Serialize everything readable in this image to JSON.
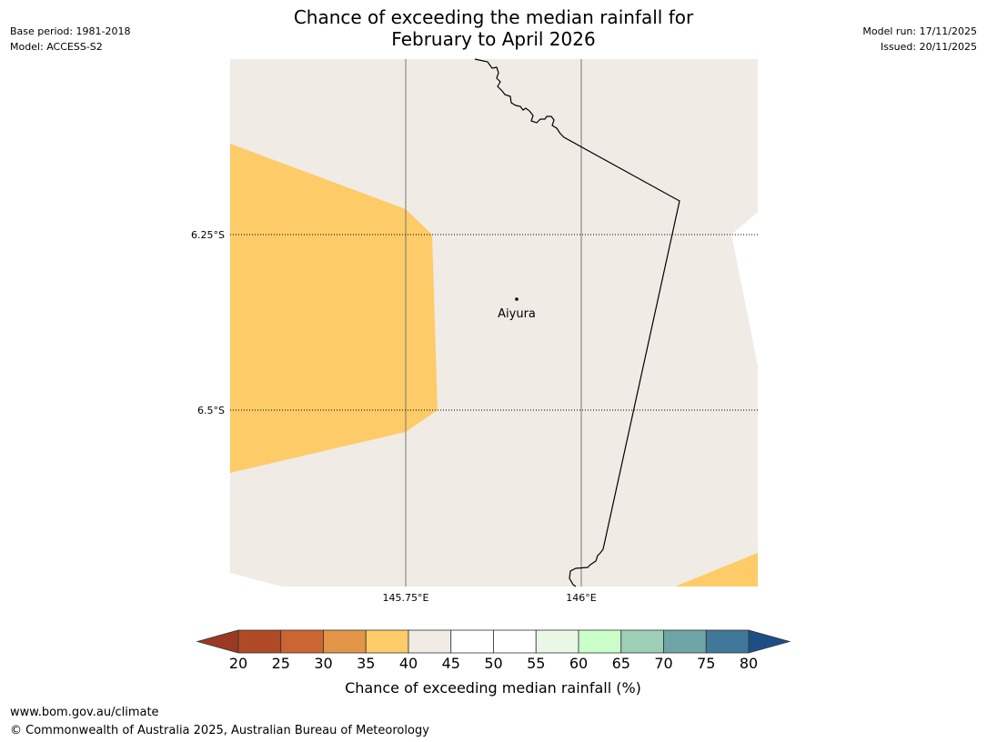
{
  "header": {
    "title_line1": "Chance of exceeding the median rainfall for",
    "title_line2": "February to April 2026",
    "base_period": "Base period: 1981-2018",
    "model": "Model: ACCESS-S2",
    "model_run": "Model run: 17/11/2025",
    "issued": "Issued: 20/11/2025"
  },
  "map": {
    "place_label": "Aiyura",
    "lat_labels": [
      "6.25°S",
      "6.5°S"
    ],
    "lon_labels": [
      "145.75°E",
      "146°E"
    ]
  },
  "colorbar": {
    "title": "Chance of exceeding median rainfall (%)",
    "ticks": [
      "20",
      "25",
      "30",
      "35",
      "40",
      "45",
      "50",
      "55",
      "60",
      "65",
      "70",
      "75",
      "80"
    ],
    "under_color": "#9b3a22",
    "over_color": "#1d4f86",
    "bin_colors": [
      "#b04a26",
      "#cb6632",
      "#e39548",
      "#fdcc68",
      "#f0ebe5",
      "#ffffff",
      "#ffffff",
      "#eaf6e6",
      "#caffca",
      "#9ccfb6",
      "#6ea5a7",
      "#3f7898"
    ]
  },
  "chart_data": {
    "type": "heatmap",
    "title": "Chance of exceeding the median rainfall for February to April 2026",
    "region": "Aiyura",
    "x_ticks": [
      "145.75°E",
      "146°E"
    ],
    "y_ticks": [
      "6.25°S",
      "6.5°S"
    ],
    "categories_percent": [
      [
        35,
        40
      ],
      [
        40,
        45
      ]
    ],
    "visible_classes": [
      {
        "range": "35-40",
        "color": "#fdcc68",
        "location": "west and south-east corner"
      },
      {
        "range": "40-45",
        "color": "#f0ebe5",
        "location": "centre and east including Aiyura"
      },
      {
        "range": "45-50",
        "color": "#ffffff",
        "location": "far east edge"
      }
    ],
    "colorbar_label": "Chance of exceeding median rainfall (%)",
    "colorbar_range": [
      20,
      80
    ]
  },
  "footer": {
    "website": "www.bom.gov.au/climate",
    "copyright": "© Commonwealth of Australia 2025, Australian Bureau of Meteorology"
  }
}
